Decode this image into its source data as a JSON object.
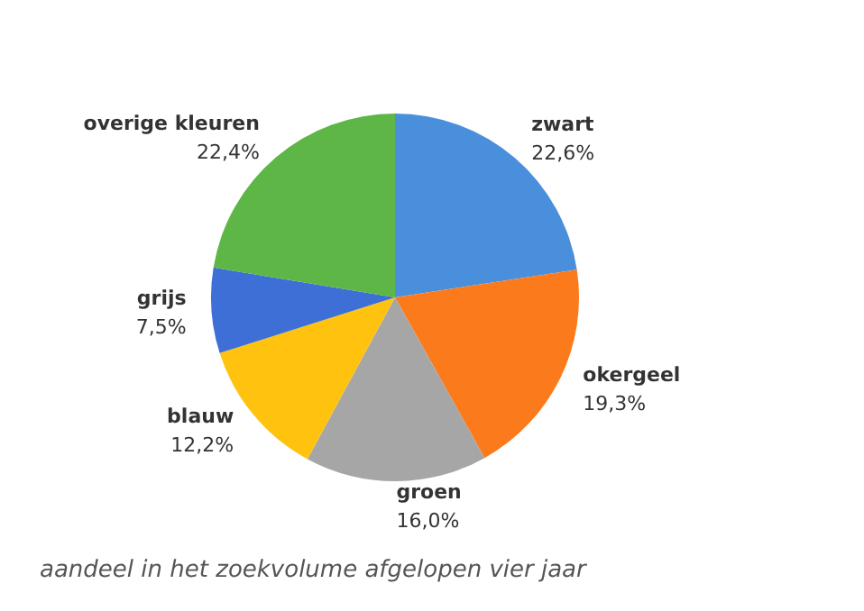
{
  "chart_data": {
    "type": "pie",
    "categories": [
      "zwart",
      "okergeel",
      "groen",
      "blauw",
      "grijs",
      "overige kleuren"
    ],
    "values": [
      22.6,
      19.3,
      16.0,
      12.2,
      7.5,
      22.4
    ],
    "colors": [
      "#4a8fdc",
      "#fb7a1c",
      "#a6a6a6",
      "#ffc30f",
      "#3d6fd6",
      "#5db645"
    ],
    "value_labels": [
      "22,6%",
      "19,3%",
      "16,0%",
      "12,2%",
      "7,5%",
      "22,4%"
    ],
    "annotations": [
      "aandeel in het zoekvolume afgelopen vier jaar"
    ],
    "legend": false
  }
}
